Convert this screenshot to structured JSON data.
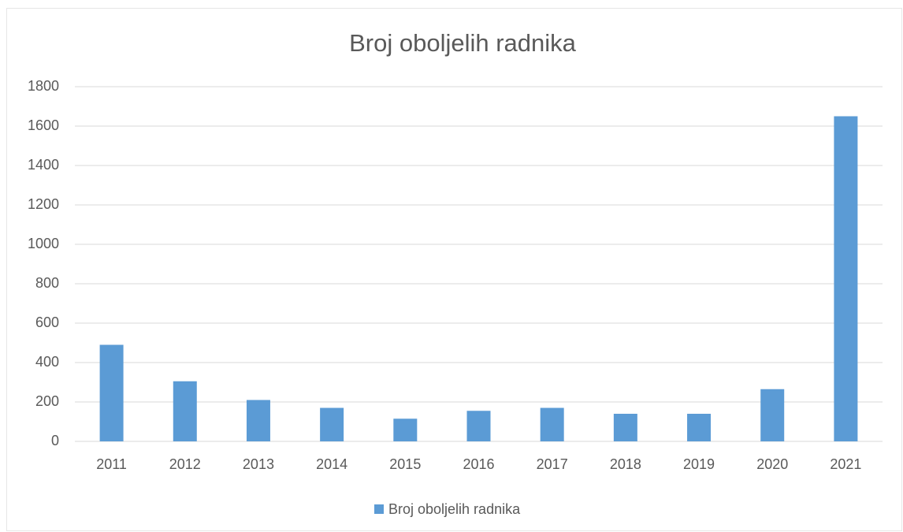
{
  "chart_data": {
    "type": "bar",
    "title": "Broj oboljelih radnika",
    "categories": [
      "2011",
      "2012",
      "2013",
      "2014",
      "2015",
      "2016",
      "2017",
      "2018",
      "2019",
      "2020",
      "2021"
    ],
    "series": [
      {
        "name": "Broj oboljelih radnika",
        "color": "#5b9bd5",
        "values": [
          490,
          305,
          210,
          170,
          115,
          155,
          170,
          140,
          140,
          265,
          1650
        ]
      }
    ],
    "ylim": [
      0,
      1800
    ],
    "yticks": [
      0,
      200,
      400,
      600,
      800,
      1000,
      1200,
      1400,
      1600,
      1800
    ],
    "grid": true,
    "legend": "bottom"
  }
}
